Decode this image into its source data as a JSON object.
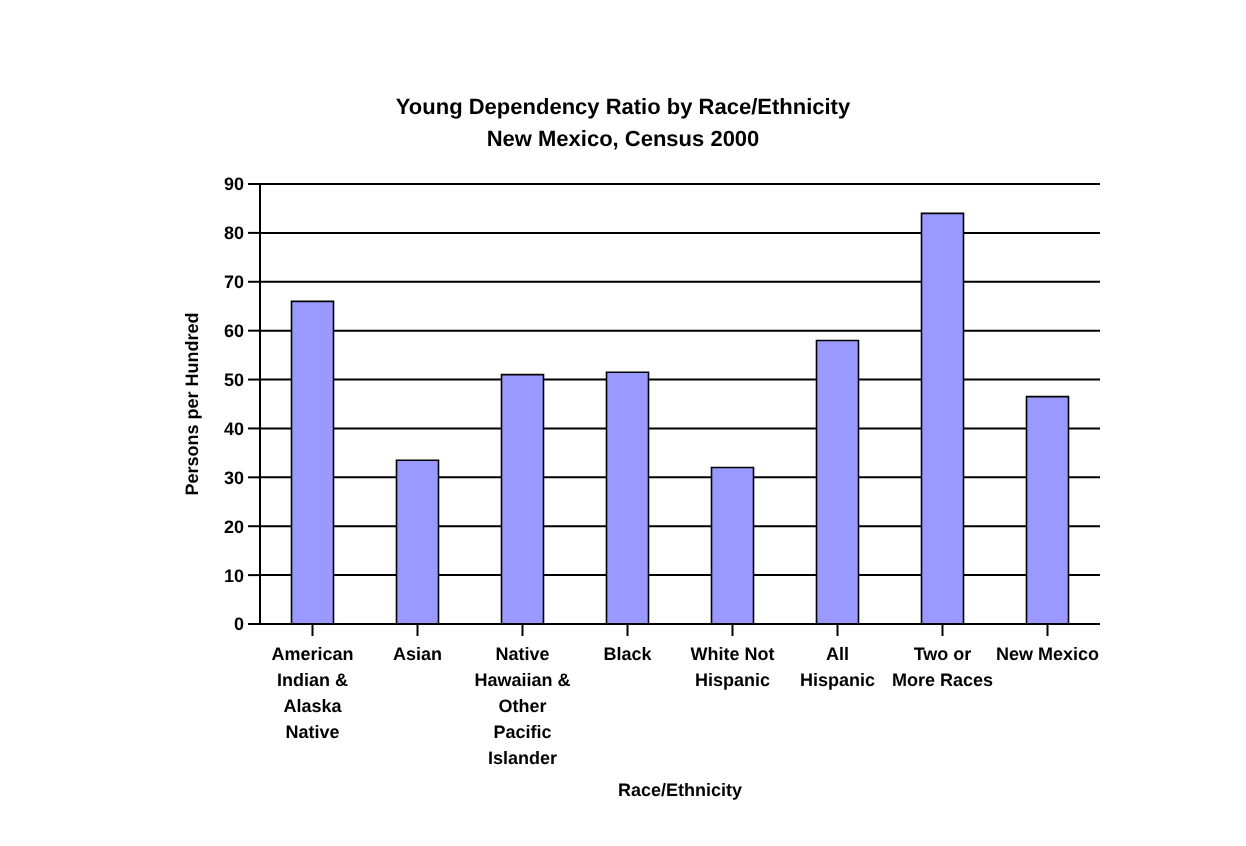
{
  "chart_data": {
    "type": "bar",
    "title": "Young Dependency Ratio by Race/Ethnicity",
    "subtitle": "New Mexico, Census 2000",
    "xlabel": "Race/Ethnicity",
    "ylabel": "Persons per Hundred",
    "categories": [
      "American Indian & Alaska Native",
      "Asian",
      "Native Hawaiian & Other Pacific Islander",
      "Black",
      "White Not Hispanic",
      "All Hispanic",
      "Two or More Races",
      "New Mexico"
    ],
    "values": [
      66,
      33.5,
      51,
      51.5,
      32,
      58,
      84,
      46.5
    ],
    "color": "#9999ff",
    "ylim": [
      0,
      90
    ],
    "yticks": [
      0,
      10,
      20,
      30,
      40,
      50,
      60,
      70,
      80,
      90
    ],
    "grid": "y"
  }
}
